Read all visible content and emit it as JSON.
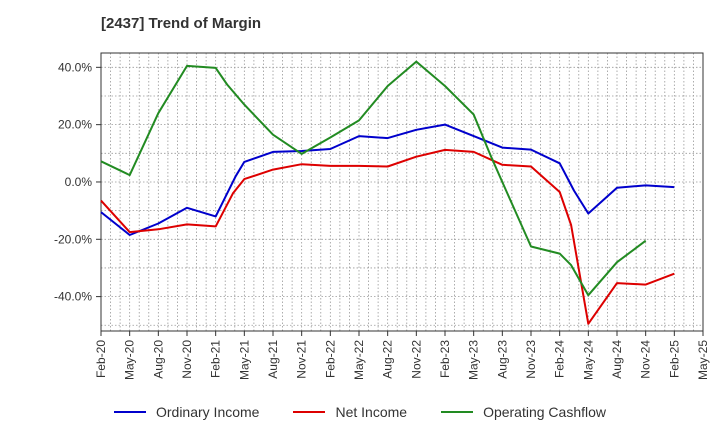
{
  "title": "[2437]  Trend of Margin",
  "chart_data": {
    "type": "line",
    "x": [
      "Feb-20",
      "May-20",
      "Aug-20",
      "Nov-20",
      "Feb-21",
      "May-21",
      "Aug-21",
      "Nov-21",
      "Feb-22",
      "May-22",
      "Aug-22",
      "Nov-22",
      "Feb-23",
      "May-23",
      "Aug-23",
      "Nov-23",
      "Feb-24",
      "May-24",
      "Aug-24",
      "Nov-24",
      "Feb-25",
      "May-25"
    ],
    "x_extra": [],
    "ylim": [
      -52,
      45
    ],
    "yticks": [
      40,
      20,
      0,
      -20,
      -40
    ],
    "ytick_labels": [
      "40.0%",
      "20.0%",
      "0.0%",
      "-20.0%",
      "-40.0%"
    ],
    "grid": true,
    "legend_position": "bottom-center",
    "series": [
      {
        "name": "Ordinary Income",
        "color": "#0000cc",
        "points": [
          [
            0,
            -10.5
          ],
          [
            1,
            -18.5
          ],
          [
            2,
            -14.5
          ],
          [
            3,
            -9
          ],
          [
            4,
            -12
          ],
          [
            4.7,
            2
          ],
          [
            5,
            7
          ],
          [
            6,
            10.5
          ],
          [
            7,
            10.8
          ],
          [
            8,
            11.5
          ],
          [
            9,
            16
          ],
          [
            10,
            15.3
          ],
          [
            11,
            18.2
          ],
          [
            12,
            20
          ],
          [
            13,
            16
          ],
          [
            14,
            12
          ],
          [
            15,
            11.3
          ],
          [
            16,
            6.5
          ],
          [
            16.5,
            -3
          ],
          [
            17,
            -11
          ],
          [
            18,
            -2
          ],
          [
            19,
            -1.2
          ],
          [
            20,
            -1.8
          ]
        ]
      },
      {
        "name": "Net Income",
        "color": "#dd0000",
        "points": [
          [
            0,
            -6.5
          ],
          [
            1,
            -17.5
          ],
          [
            2,
            -16.5
          ],
          [
            3,
            -14.8
          ],
          [
            4,
            -15.5
          ],
          [
            4.6,
            -4
          ],
          [
            5,
            1
          ],
          [
            6,
            4.3
          ],
          [
            7,
            6.2
          ],
          [
            8,
            5.6
          ],
          [
            9,
            5.6
          ],
          [
            10,
            5.4
          ],
          [
            11,
            8.8
          ],
          [
            12,
            11.2
          ],
          [
            13,
            10.5
          ],
          [
            14,
            6
          ],
          [
            15,
            5.4
          ],
          [
            16,
            -3.5
          ],
          [
            16.4,
            -15
          ],
          [
            17,
            -49.5
          ],
          [
            18,
            -35.3
          ],
          [
            19,
            -35.8
          ],
          [
            20,
            -32
          ]
        ]
      },
      {
        "name": "Operating Cashflow",
        "color": "#228b22",
        "points": [
          [
            0,
            7.2
          ],
          [
            1,
            2.4
          ],
          [
            2,
            24
          ],
          [
            3,
            40.5
          ],
          [
            4,
            39.8
          ],
          [
            4.4,
            34
          ],
          [
            5,
            27
          ],
          [
            6,
            16.5
          ],
          [
            7,
            9.8
          ],
          [
            8,
            15.5
          ],
          [
            9,
            21.5
          ],
          [
            10,
            33.5
          ],
          [
            11,
            42
          ],
          [
            12,
            33.5
          ],
          [
            13,
            23.5
          ],
          [
            13.6,
            9
          ],
          [
            14,
            0
          ],
          [
            15,
            -22.5
          ],
          [
            16,
            -25
          ],
          [
            16.4,
            -29
          ],
          [
            17,
            -39.5
          ],
          [
            18,
            -28
          ],
          [
            19,
            -20.5
          ]
        ]
      }
    ]
  }
}
